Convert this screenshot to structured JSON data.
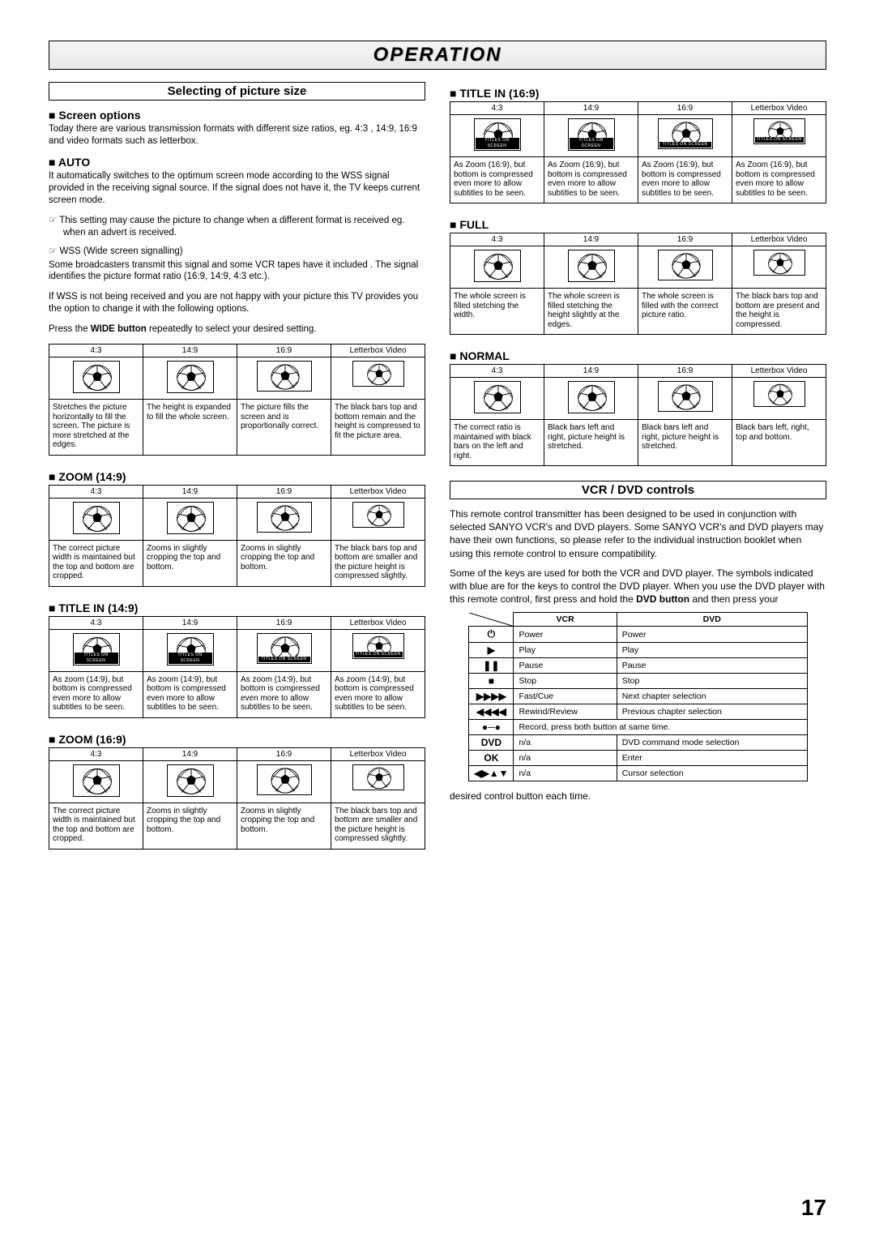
{
  "page_title": "OPERATION",
  "page_number": "17",
  "section1_title": "Selecting of picture size",
  "screen_options_h": "Screen options",
  "screen_options_p": "Today there are various transmission formats with different size ratios, eg. 4:3 , 14:9, 16:9 and video formats such as letterbox.",
  "auto_h": "AUTO",
  "auto_p": "It automatically switches to the optimum screen mode according to the WSS signal provided in the receiving signal source. If the signal does not have it, the TV keeps current screen mode.",
  "auto_note1": "This setting may cause the picture to change when a different format is received eg. when an advert is received.",
  "auto_note2_h": "WSS (Wide screen signalling)",
  "auto_note2_p": "Some broadcasters transmit this signal and some VCR tapes have it included . The signal identifies the picture format ratio (16:9, 14:9, 4:3 etc.).",
  "wss_p": "If WSS is not being received and you are not happy with your picture this TV provides you the option to change it with the following options.",
  "press_p1": "Press the ",
  "press_bold": "WIDE button",
  "press_p2": " repeatedly to select your desired setting.",
  "cols": [
    "4:3",
    "14:9",
    "16:9",
    "Letterbox Video"
  ],
  "title_strip": "TITLES ON SCREEN",
  "modes": {
    "default": {
      "h": "",
      "d": [
        "Stretches the picture horizontally to fill the screen. The picture is more stretched at the edges.",
        "The height is expanded to fill the whole screen.",
        "The picture fills the screen and is proportionally correct.",
        "The black bars top and bottom remain and the height is compressed to fit the picture area."
      ]
    },
    "zoom149": {
      "h": "ZOOM (14:9)",
      "d": [
        "The correct picture width is maintained but the top and bottom are cropped.",
        "Zooms in slightly cropping the top and bottom.",
        "Zooms in slightly cropping the top and bottom.",
        "The black bars top and bottom are smaller and the picture height is compressed slightly."
      ]
    },
    "title149": {
      "h": "TITLE IN (14:9)",
      "d": [
        "As zoom (14:9), but bottom is compressed even more to allow subtitles to be seen.",
        "As zoom (14:9), but bottom is compressed even more to allow subtitles to be seen.",
        "As zoom (14:9), but bottom is compressed even more to allow subtitles to be seen.",
        "As zoom (14:9), but bottom is compressed even more to allow subtitles to be seen."
      ]
    },
    "zoom169": {
      "h": "ZOOM (16:9)",
      "d": [
        "The correct picture width is maintained but the top and bottom are cropped.",
        "Zooms in slightly cropping the top and bottom.",
        "Zooms in slightly cropping the top and bottom.",
        "The black bars top and bottom are smaller and the picture height is compressed slightly."
      ]
    },
    "title169": {
      "h": "TITLE IN (16:9)",
      "d": [
        "As Zoom (16:9), but bottom is compressed even more to allow subtitles to be seen.",
        "As Zoom (16:9), but bottom is compressed even more to allow subtitles to be seen.",
        "As Zoom (16:9), but bottom is compressed even more to allow subtitles to be seen.",
        "As Zoom (16:9), but bottom is compressed even more to allow subtitles to be seen."
      ]
    },
    "full": {
      "h": "FULL",
      "d": [
        "The whole screen is filled stetching the width.",
        "The whole screen is filled stetching the height slightly at the edges.",
        "The whole screen is filled with the corrrect picture ratio.",
        "The black bars top and bottom are present and the height is compressed."
      ]
    },
    "normal": {
      "h": "NORMAL",
      "d": [
        "The correct ratio is maintained with black bars on the left and right.",
        "Black bars left and right, picture height is stretched.",
        "Black bars left and right, picture height is stretched.",
        "Black bars left, right, top and bottom."
      ]
    }
  },
  "section2_title": "VCR / DVD controls",
  "vcr_p1": "This remote control transmitter has been designed to be used in conjunction with selected SANYO VCR's and DVD players. Some SANYO VCR's and DVD players may have their own functions, so please refer to the individual instruction booklet when using this remote control to ensure compatibility.",
  "vcr_p2a": "Some of the keys are used for both the VCR and DVD player. The symbols indicated with blue are for the keys to control the DVD player. When you use the DVD player with this remote control, first press and hold the ",
  "vcr_p2b": "DVD button",
  "vcr_p2c": " and then press your",
  "vcr_after": "desired control button each time.",
  "vcr_hdr": [
    "",
    "VCR",
    "DVD"
  ],
  "vcr_rows": [
    {
      "sym": "⏻",
      "vcr": "Power",
      "dvd": "Power"
    },
    {
      "sym": "▶",
      "vcr": "Play",
      "dvd": "Play"
    },
    {
      "sym": "❚❚",
      "vcr": "Pause",
      "dvd": "Pause"
    },
    {
      "sym": "■",
      "vcr": "Stop",
      "dvd": "Stop"
    },
    {
      "sym": "▶▶▶▶",
      "vcr": "Fast/Cue",
      "dvd": "Next chapter selection"
    },
    {
      "sym": "◀◀◀◀",
      "vcr": "Rewind/Review",
      "dvd": "Previous chapter selection"
    },
    {
      "sym": "●─●",
      "vcr": "Record, press both button at same time.",
      "dvd": "__span__"
    },
    {
      "sym": "DVD",
      "vcr": "n/a",
      "dvd": "DVD command mode selection"
    },
    {
      "sym": "OK",
      "vcr": "n/a",
      "dvd": "Enter"
    },
    {
      "sym": "◀▶▲▼",
      "vcr": "n/a",
      "dvd": "Cursor selection"
    }
  ]
}
